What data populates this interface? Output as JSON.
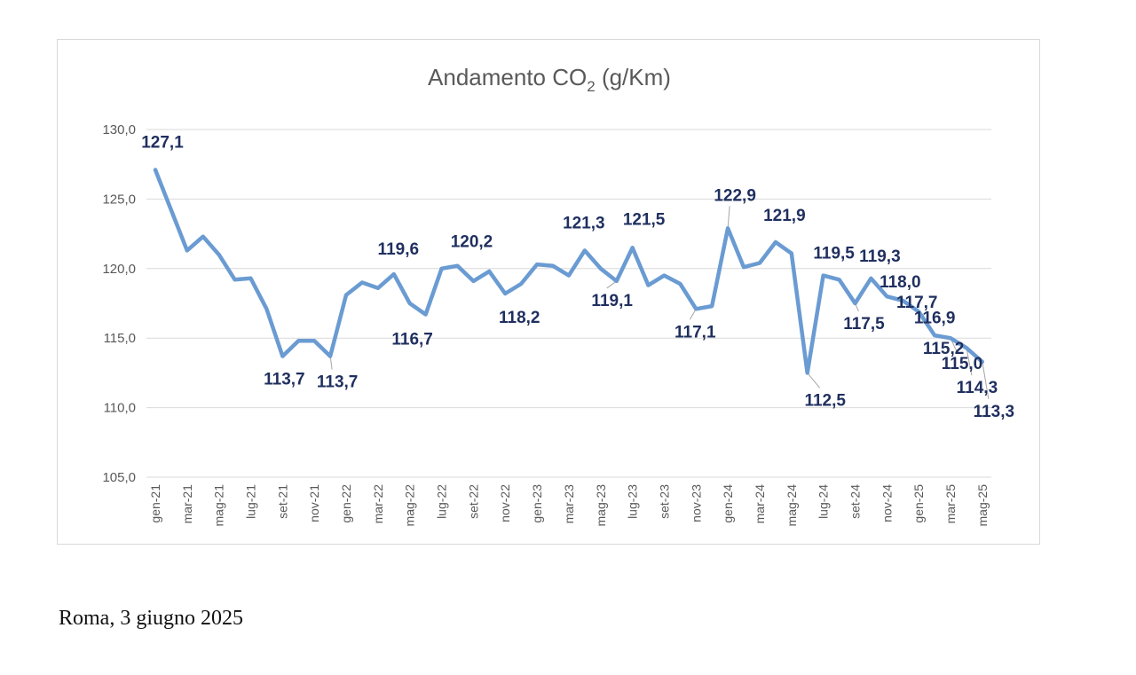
{
  "footer": {
    "text": "Roma, 3 giugno 2025"
  },
  "chart_data": {
    "type": "line",
    "title": "Andamento CO",
    "title_subscript": "2",
    "title_suffix": " (g/Km)",
    "xlabel": "",
    "ylabel": "",
    "ylim": [
      105,
      130
    ],
    "yticks": [
      "130,0",
      "125,0",
      "120,0",
      "115,0",
      "110,0",
      "105,0"
    ],
    "ytick_values": [
      130,
      125,
      120,
      115,
      110,
      105
    ],
    "grid": true,
    "line_color": "#6a9bd2",
    "label_color": "#1f2f5f",
    "x_tick_labels": [
      "gen-21",
      "mar-21",
      "mag-21",
      "lug-21",
      "set-21",
      "nov-21",
      "gen-22",
      "mar-22",
      "mag-22",
      "lug-22",
      "set-22",
      "nov-22",
      "gen-23",
      "mar-23",
      "mag-23",
      "lug-23",
      "set-23",
      "nov-23",
      "gen-24",
      "mar-24",
      "mag-24",
      "lug-24",
      "set-24",
      "nov-24",
      "gen-25",
      "mar-25",
      "mag-25"
    ],
    "x": [
      "gen-21",
      "feb-21",
      "mar-21",
      "apr-21",
      "mag-21",
      "giu-21",
      "lug-21",
      "ago-21",
      "set-21",
      "ott-21",
      "nov-21",
      "dic-21",
      "gen-22",
      "feb-22",
      "mar-22",
      "apr-22",
      "mag-22",
      "giu-22",
      "lug-22",
      "ago-22",
      "set-22",
      "ott-22",
      "nov-22",
      "dic-22",
      "gen-23",
      "feb-23",
      "mar-23",
      "apr-23",
      "mag-23",
      "giu-23",
      "lug-23",
      "ago-23",
      "set-23",
      "ott-23",
      "nov-23",
      "dic-23",
      "gen-24",
      "feb-24",
      "mar-24",
      "apr-24",
      "mag-24",
      "giu-24",
      "lug-24",
      "ago-24",
      "set-24",
      "ott-24",
      "nov-24",
      "dic-24",
      "gen-25",
      "feb-25",
      "mar-25",
      "apr-25",
      "mag-25"
    ],
    "series": [
      {
        "values": [
          127.1,
          124.2,
          121.3,
          122.3,
          121.0,
          119.2,
          119.3,
          117.1,
          113.7,
          114.8,
          114.8,
          113.7,
          118.1,
          119.0,
          118.6,
          119.6,
          117.5,
          116.7,
          120.0,
          120.2,
          119.1,
          119.8,
          118.2,
          118.9,
          120.3,
          120.2,
          119.5,
          121.3,
          120.0,
          119.1,
          121.5,
          118.8,
          119.5,
          118.9,
          117.1,
          117.3,
          122.9,
          120.1,
          120.4,
          121.9,
          121.1,
          112.5,
          119.5,
          119.2,
          117.5,
          119.3,
          118.0,
          117.7,
          116.9,
          115.2,
          115.0,
          114.3,
          113.3
        ]
      }
    ],
    "data_labels": [
      {
        "i": 0,
        "text": "127,1"
      },
      {
        "i": 8,
        "text": "113,7"
      },
      {
        "i": 11,
        "text": "113,7"
      },
      {
        "i": 15,
        "text": "119,6"
      },
      {
        "i": 17,
        "text": "116,7"
      },
      {
        "i": 19,
        "text": "120,2"
      },
      {
        "i": 22,
        "text": "118,2"
      },
      {
        "i": 27,
        "text": "121,3"
      },
      {
        "i": 29,
        "text": "119,1"
      },
      {
        "i": 30,
        "text": "121,5"
      },
      {
        "i": 34,
        "text": "117,1"
      },
      {
        "i": 36,
        "text": "122,9"
      },
      {
        "i": 39,
        "text": "121,9"
      },
      {
        "i": 41,
        "text": "112,5"
      },
      {
        "i": 42,
        "text": "119,5"
      },
      {
        "i": 44,
        "text": "117,5"
      },
      {
        "i": 45,
        "text": "119,3"
      },
      {
        "i": 46,
        "text": "118,0"
      },
      {
        "i": 47,
        "text": "117,7"
      },
      {
        "i": 48,
        "text": "116,9"
      },
      {
        "i": 49,
        "text": "115,2"
      },
      {
        "i": 50,
        "text": "115,0"
      },
      {
        "i": 51,
        "text": "114,3"
      },
      {
        "i": 52,
        "text": "113,3"
      }
    ]
  }
}
